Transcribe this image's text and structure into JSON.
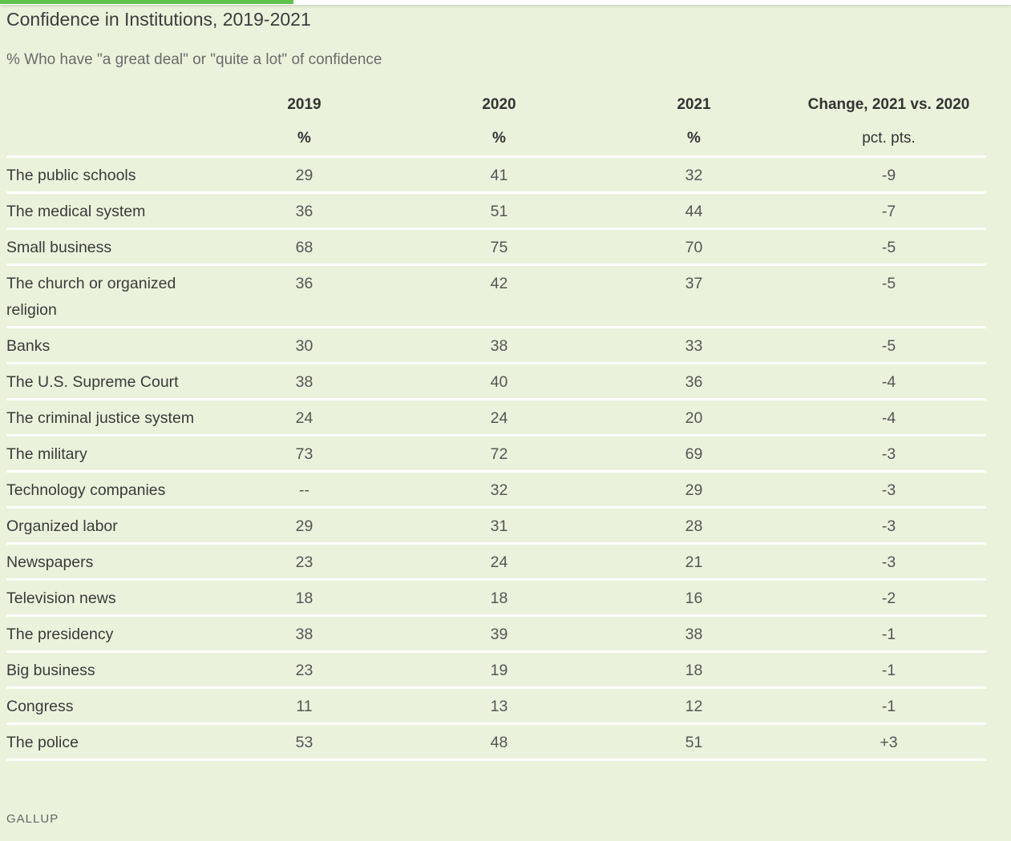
{
  "title": "Confidence in Institutions, 2019-2021",
  "subtitle": "% Who have \"a great deal\" or \"quite a lot\" of confidence",
  "source": "GALLUP",
  "colors": {
    "background": "#ebf2dc",
    "progress_bar": "#5fc24e"
  },
  "progress_fraction": 0.29,
  "chart_data": {
    "type": "table",
    "title": "Confidence in Institutions, 2019-2021",
    "subtitle": "% Who have \"a great deal\" or \"quite a lot\" of confidence",
    "columns": [
      "",
      "2019",
      "2020",
      "2021",
      "Change, 2021 vs. 2020"
    ],
    "units": [
      "",
      "%",
      "%",
      "%",
      "pct. pts."
    ],
    "rows": [
      [
        "The public schools",
        "29",
        "41",
        "32",
        "-9"
      ],
      [
        "The medical system",
        "36",
        "51",
        "44",
        "-7"
      ],
      [
        "Small business",
        "68",
        "75",
        "70",
        "-5"
      ],
      [
        "The church or organized religion",
        "36",
        "42",
        "37",
        "-5"
      ],
      [
        "Banks",
        "30",
        "38",
        "33",
        "-5"
      ],
      [
        "The U.S. Supreme Court",
        "38",
        "40",
        "36",
        "-4"
      ],
      [
        "The criminal justice system",
        "24",
        "24",
        "20",
        "-4"
      ],
      [
        "The military",
        "73",
        "72",
        "69",
        "-3"
      ],
      [
        "Technology companies",
        "--",
        "32",
        "29",
        "-3"
      ],
      [
        "Organized labor",
        "29",
        "31",
        "28",
        "-3"
      ],
      [
        "Newspapers",
        "23",
        "24",
        "21",
        "-3"
      ],
      [
        "Television news",
        "18",
        "18",
        "16",
        "-2"
      ],
      [
        "The presidency",
        "38",
        "39",
        "38",
        "-1"
      ],
      [
        "Big business",
        "23",
        "19",
        "18",
        "-1"
      ],
      [
        "Congress",
        "11",
        "13",
        "12",
        "-1"
      ],
      [
        "The police",
        "53",
        "48",
        "51",
        "+3"
      ]
    ]
  }
}
